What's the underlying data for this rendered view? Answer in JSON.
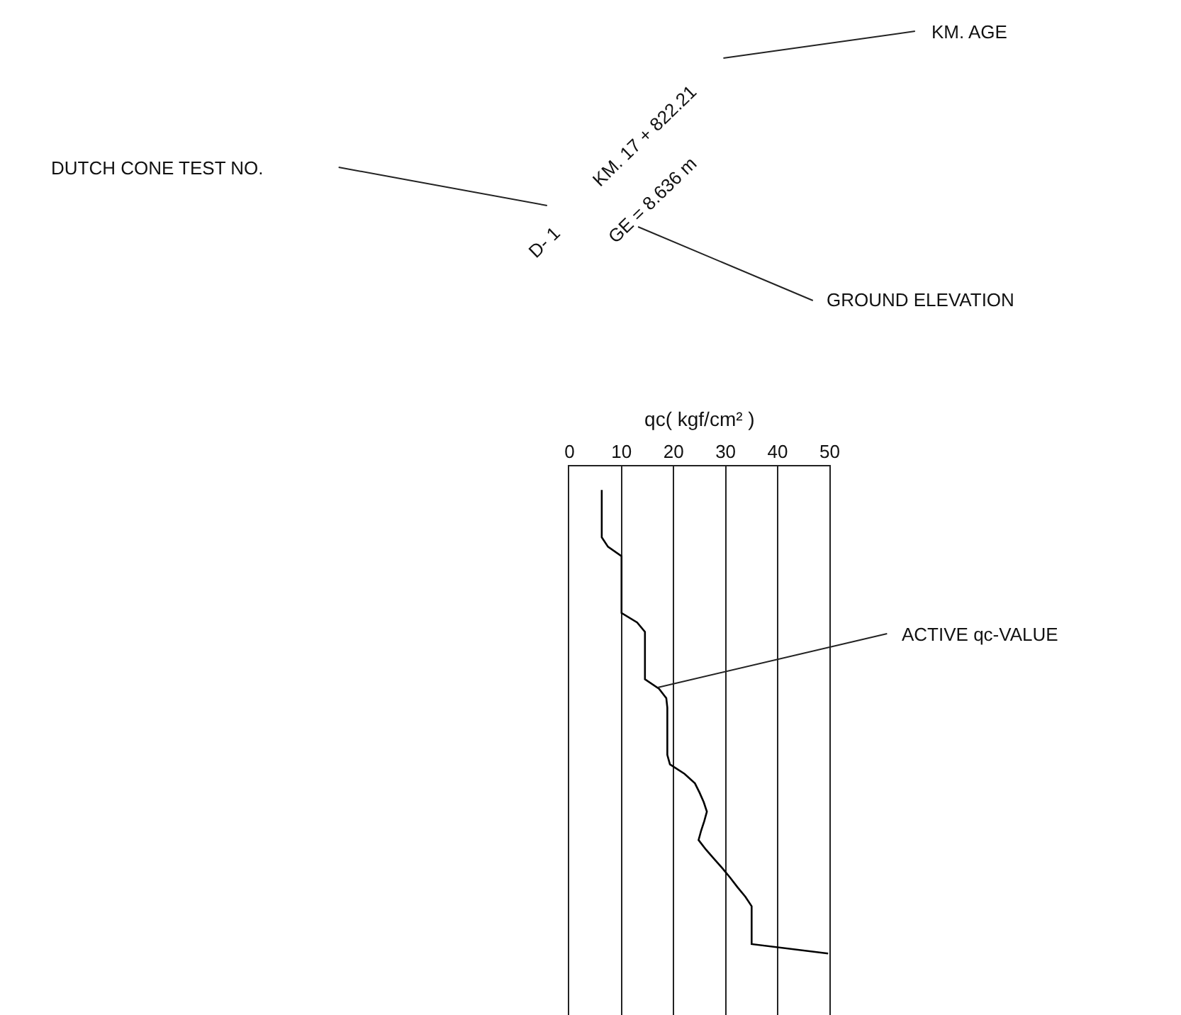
{
  "chart_data": {
    "type": "line",
    "orientation": "horizontal",
    "xlabel": "qc( kgf/cm² )",
    "categories": [
      null,
      null,
      null,
      null,
      null,
      null,
      null,
      null,
      null,
      null,
      null,
      null,
      null,
      null,
      null,
      null,
      null,
      null,
      null,
      null,
      null,
      null,
      null,
      null,
      null,
      null,
      null,
      null,
      null,
      null,
      null,
      null,
      null,
      null,
      null,
      null,
      null,
      null,
      null,
      null,
      null,
      null,
      null,
      null,
      null,
      null,
      null,
      null,
      null,
      null
    ],
    "series": [
      {
        "color": "#000000",
        "values": [
          6.2,
          6.2,
          6.2,
          6.2,
          6.2,
          6.2,
          7.4,
          10,
          10,
          10,
          10,
          10,
          10,
          10,
          13,
          14.5,
          14.5,
          14.5,
          14.5,
          14.5,
          14.5,
          17.2,
          18.6,
          18.8,
          18.8,
          18.8,
          18.8,
          18.8,
          18.8,
          19.3,
          22.1,
          24.1,
          25,
          25.8,
          26.4,
          25.9,
          25.3,
          24.8,
          26.2,
          27.8,
          29.4,
          30.9,
          32.3,
          33.8,
          35,
          35,
          35,
          35,
          35,
          49.7
        ]
      }
    ],
    "xlim": [
      0,
      50
    ],
    "xticks": [
      0,
      10,
      20,
      30,
      40,
      50
    ],
    "grid": "x",
    "marker": "none",
    "line_style": "solid",
    "annotations": [
      "DUTCH CONE TEST NO.",
      "KM. AGE",
      "GROUND ELEVATION",
      "ACTIVE qc-VALUE",
      "D- 1",
      "KM. 17 + 822.21",
      "GE = 8.636 m"
    ]
  }
}
